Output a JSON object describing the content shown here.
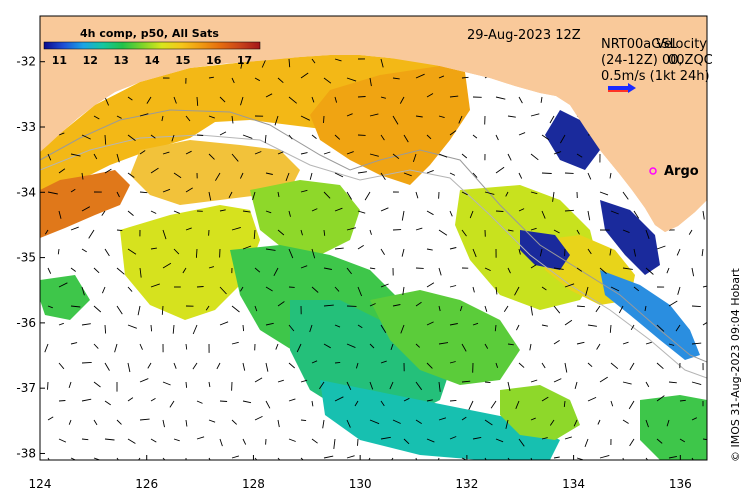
{
  "map": {
    "date_label": "29-Aug-2023 12Z",
    "colorbar": {
      "title": "4h comp, p50, All Sats",
      "ticks": [
        "11",
        "12",
        "13",
        "14",
        "15",
        "16",
        "17"
      ],
      "min": 10.5,
      "max": 17.5,
      "colors": [
        "#0a0a8c",
        "#1e4fd6",
        "#1aa3e6",
        "#15c7a0",
        "#22c24a",
        "#7cd42a",
        "#d8e61c",
        "#f5c61a",
        "#f09a12",
        "#e56b0e",
        "#c8431a",
        "#a4161a"
      ]
    },
    "legend": {
      "line1_a": "NRT00aGSL",
      "line1_b": "Velocity",
      "line2_a": "(24-12Z) 00,",
      "line2_b": "00ZQC",
      "line3": "0.5m/s (1kt 24h)"
    },
    "argo_label": "Argo",
    "x_ticks": [
      "124",
      "126",
      "128",
      "130",
      "132",
      "134",
      "136"
    ],
    "y_ticks": [
      "-32",
      "-33",
      "-34",
      "-35",
      "-36",
      "-37",
      "-38"
    ],
    "lon_range": [
      124,
      136.5
    ],
    "lat_range": [
      -38.1,
      -31.3
    ],
    "credit": "© IMOS 31-Aug-2023 09:04 Hobart",
    "colors": {
      "land": "#f9c99a",
      "background": "#ffffff",
      "argo": "#ff00ff"
    }
  }
}
